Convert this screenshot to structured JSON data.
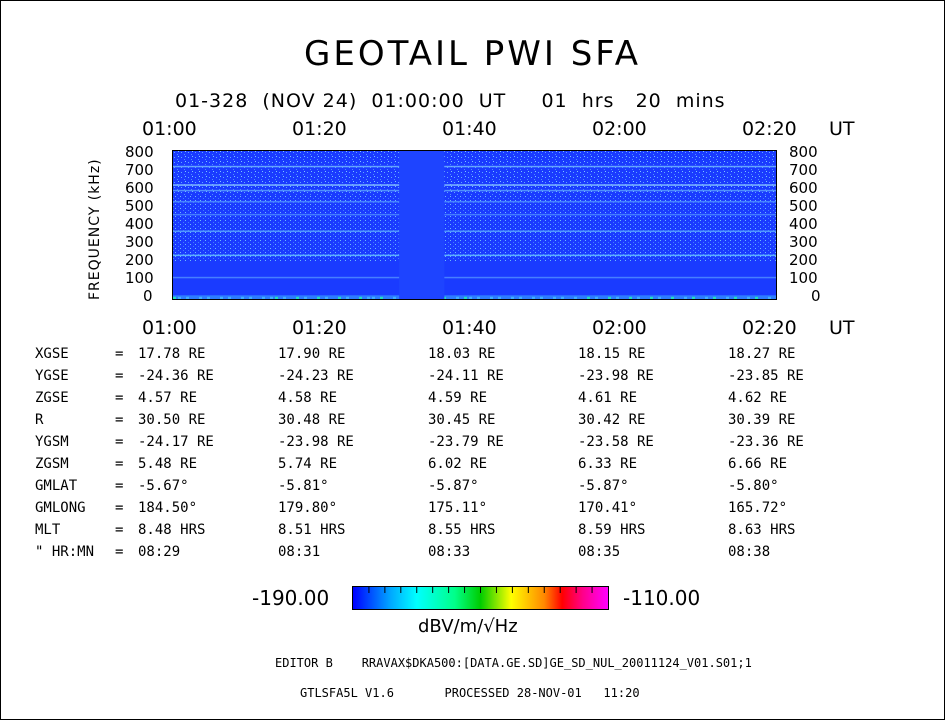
{
  "title": "GEOTAIL  PWI  SFA",
  "subtitle": "01-328  (NOV 24)  01:00:00  UT     01  hrs   20  mins",
  "time_axis": {
    "labels": [
      "01:00",
      "01:20",
      "01:40",
      "02:00",
      "02:20"
    ],
    "unit": "UT"
  },
  "y_axis": {
    "label": "FREQUENCY (kHz)",
    "ticks": [
      "800",
      "700",
      "600",
      "500",
      "400",
      "300",
      "200",
      "100",
      "0"
    ]
  },
  "chart_data": {
    "type": "heatmap",
    "title": "GEOTAIL  PWI  SFA",
    "xlabel": "UT",
    "ylabel": "FREQUENCY (kHz)",
    "x_start": "01:00",
    "x_end": "02:20",
    "ylim": [
      0,
      800
    ],
    "color_range": [
      -190.0,
      -110.0
    ],
    "color_unit": "dBV/m/√Hz",
    "data_gap": {
      "start": "01:30",
      "end": "01:36"
    }
  },
  "ephemeris": {
    "rows": [
      {
        "label": "XGSE",
        "eq": "=",
        "values": [
          "17.78 RE",
          "17.90 RE",
          "18.03 RE",
          "18.15 RE",
          "18.27 RE"
        ]
      },
      {
        "label": "YGSE",
        "eq": "=",
        "values": [
          "-24.36 RE",
          "-24.23 RE",
          "-24.11 RE",
          "-23.98 RE",
          "-23.85 RE"
        ]
      },
      {
        "label": "ZGSE",
        "eq": "=",
        "values": [
          "4.57 RE",
          "4.58 RE",
          "4.59 RE",
          "4.61 RE",
          "4.62 RE"
        ]
      },
      {
        "label": "R",
        "eq": "=",
        "values": [
          "30.50 RE",
          "30.48 RE",
          "30.45 RE",
          "30.42 RE",
          "30.39 RE"
        ]
      },
      {
        "label": "YGSM",
        "eq": "=",
        "values": [
          "-24.17 RE",
          "-23.98 RE",
          "-23.79 RE",
          "-23.58 RE",
          "-23.36 RE"
        ]
      },
      {
        "label": "ZGSM",
        "eq": "=",
        "values": [
          "5.48 RE",
          "5.74 RE",
          "6.02 RE",
          "6.33 RE",
          "6.66 RE"
        ]
      },
      {
        "label": "GMLAT",
        "eq": "=",
        "values": [
          "-5.67°",
          "-5.81°",
          "-5.87°",
          "-5.87°",
          "-5.80°"
        ]
      },
      {
        "label": "GMLONG",
        "eq": "=",
        "values": [
          "184.50°",
          "179.80°",
          "175.11°",
          "170.41°",
          "165.72°"
        ]
      },
      {
        "label": "MLT",
        "eq": "=",
        "values": [
          "8.48 HRS",
          "8.51 HRS",
          "8.55 HRS",
          "8.59 HRS",
          "8.63 HRS"
        ]
      },
      {
        "label": "\" HR:MN",
        "eq": "=",
        "values": [
          "08:29",
          "08:31",
          "08:33",
          "08:35",
          "08:38"
        ]
      }
    ]
  },
  "colorbar": {
    "min_label": "-190.00",
    "max_label": "-110.00",
    "unit": "dBV/m/√Hz"
  },
  "footer": {
    "line1": "EDITOR B    RRAVAX$DKA500:[DATA.GE.SD]GE_SD_NUL_20011124_V01.S01;1",
    "line2": "GTLSFA5L V1.6       PROCESSED 28-NOV-01   11:20"
  },
  "colors": {
    "background_blue": "#1a3bff",
    "gap_blue": "#1e44ff",
    "frame": "#000000"
  }
}
